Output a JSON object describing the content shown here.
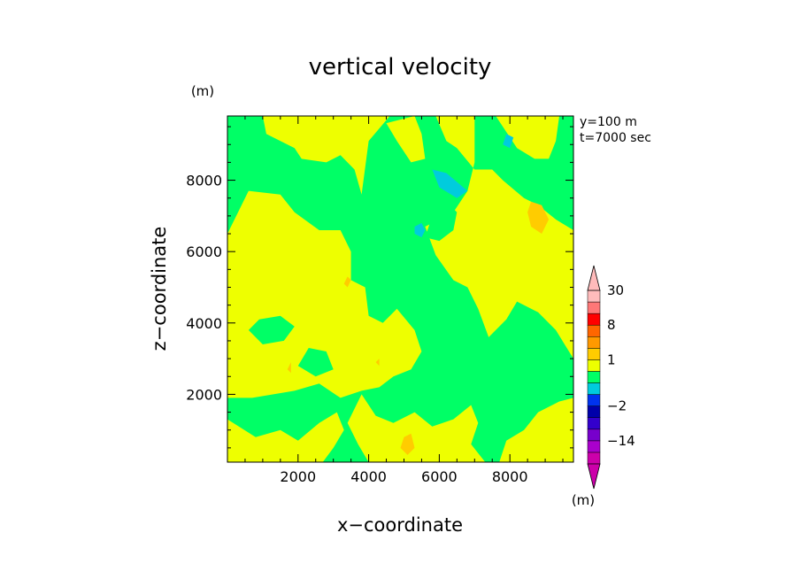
{
  "chart_data": {
    "type": "heatmap",
    "title": "vertical velocity",
    "xlabel": "x−coordinate",
    "ylabel": "z−coordinate",
    "y_unit": "(m)",
    "colorbar_unit": "(m)",
    "annotation_lines": [
      "y=100 m",
      "t=7000 sec"
    ],
    "xlim": [
      0,
      9800
    ],
    "ylim": [
      100,
      9800
    ],
    "x_ticks": [
      2000,
      4000,
      6000,
      8000
    ],
    "x_tick_labels": [
      "2000",
      "4000",
      "6000",
      "8000"
    ],
    "y_ticks": [
      2000,
      4000,
      6000,
      8000
    ],
    "y_tick_labels": [
      "2000",
      "4000",
      "6000",
      "8000"
    ],
    "colorbar": {
      "levels": [
        -30,
        -22,
        -14,
        -8,
        -4,
        -2,
        -1,
        -0.5,
        0.5,
        1,
        2,
        4,
        8,
        14,
        22,
        30
      ],
      "labeled_levels": [
        "30",
        "8",
        "1",
        "−2",
        "−14"
      ],
      "colors": [
        "#cc00aa",
        "#aa00cc",
        "#7700cc",
        "#3300cc",
        "#0000aa",
        "#0033ee",
        "#00ccdd",
        "#00ff66",
        "#eeff00",
        "#ffcc00",
        "#ff9900",
        "#ff6600",
        "#ff0000",
        "#ff7777",
        "#ffbbbb"
      ],
      "extend_both": true
    },
    "background_value_range": [
      -0.5,
      0.5
    ],
    "background_color": "#00ff66",
    "regions": [
      {
        "range": [
          0.5,
          1
        ],
        "color": "#eeff00",
        "polygon": [
          [
            0,
            6500
          ],
          [
            300,
            7100
          ],
          [
            600,
            7700
          ],
          [
            1500,
            7600
          ],
          [
            1900,
            7100
          ],
          [
            2600,
            6600
          ],
          [
            3200,
            6600
          ],
          [
            3500,
            6000
          ],
          [
            3500,
            5200
          ],
          [
            3900,
            5000
          ],
          [
            4000,
            4200
          ],
          [
            4400,
            4000
          ],
          [
            4800,
            4400
          ],
          [
            5300,
            3800
          ],
          [
            5500,
            3200
          ],
          [
            5200,
            2700
          ],
          [
            4700,
            2500
          ],
          [
            4300,
            2200
          ],
          [
            3800,
            2100
          ],
          [
            3200,
            1900
          ],
          [
            2600,
            2300
          ],
          [
            1900,
            2100
          ],
          [
            1300,
            2000
          ],
          [
            700,
            1900
          ],
          [
            0,
            1900
          ]
        ]
      },
      {
        "range": [
          0.5,
          1
        ],
        "color": "#eeff00",
        "polygon": [
          [
            0,
            1300
          ],
          [
            800,
            800
          ],
          [
            1500,
            1000
          ],
          [
            2000,
            700
          ],
          [
            2600,
            1200
          ],
          [
            3100,
            1500
          ],
          [
            3300,
            1000
          ],
          [
            3000,
            500
          ],
          [
            2700,
            100
          ],
          [
            0,
            100
          ]
        ]
      },
      {
        "range": [
          0.5,
          1
        ],
        "color": "#eeff00",
        "polygon": [
          [
            3800,
            2000
          ],
          [
            4200,
            1400
          ],
          [
            4700,
            1200
          ],
          [
            5300,
            1500
          ],
          [
            5800,
            1100
          ],
          [
            6400,
            1300
          ],
          [
            6900,
            1700
          ],
          [
            7100,
            1200
          ],
          [
            6900,
            600
          ],
          [
            7300,
            100
          ],
          [
            4000,
            100
          ],
          [
            3700,
            600
          ],
          [
            3400,
            1200
          ]
        ]
      },
      {
        "range": [
          0.5,
          1
        ],
        "color": "#eeff00",
        "polygon": [
          [
            7700,
            100
          ],
          [
            7900,
            700
          ],
          [
            8400,
            1000
          ],
          [
            8800,
            1500
          ],
          [
            9400,
            1800
          ],
          [
            9800,
            1900
          ],
          [
            9800,
            100
          ]
        ]
      },
      {
        "range": [
          0.5,
          1
        ],
        "color": "#eeff00",
        "polygon": [
          [
            1000,
            9800
          ],
          [
            1100,
            9300
          ],
          [
            1500,
            9100
          ],
          [
            1900,
            8900
          ],
          [
            2100,
            8600
          ],
          [
            2800,
            8500
          ],
          [
            3200,
            8700
          ],
          [
            3600,
            8300
          ],
          [
            3800,
            7600
          ],
          [
            4000,
            9100
          ],
          [
            4600,
            9800
          ]
        ]
      },
      {
        "range": [
          0.5,
          1
        ],
        "color": "#eeff00",
        "polygon": [
          [
            5900,
            9800
          ],
          [
            6200,
            9100
          ],
          [
            6500,
            8900
          ],
          [
            7000,
            8300
          ],
          [
            7500,
            8300
          ],
          [
            7800,
            8000
          ],
          [
            8400,
            7500
          ],
          [
            8800,
            7300
          ],
          [
            9300,
            6900
          ],
          [
            9800,
            6600
          ],
          [
            9800,
            3000
          ],
          [
            9300,
            3800
          ],
          [
            8800,
            4300
          ],
          [
            8200,
            4600
          ],
          [
            7900,
            4100
          ],
          [
            7400,
            3600
          ],
          [
            7100,
            4400
          ],
          [
            6800,
            5000
          ],
          [
            6400,
            5200
          ],
          [
            5900,
            5900
          ],
          [
            5600,
            6700
          ],
          [
            6400,
            7100
          ],
          [
            6800,
            7700
          ],
          [
            7000,
            8500
          ],
          [
            7000,
            9800
          ]
        ]
      },
      {
        "range": [
          0.5,
          1
        ],
        "color": "#eeff00",
        "polygon": [
          [
            7600,
            9800
          ],
          [
            8200,
            8900
          ],
          [
            8700,
            8600
          ],
          [
            9100,
            8600
          ],
          [
            9300,
            9100
          ],
          [
            9400,
            9800
          ]
        ]
      },
      {
        "range": [
          0.5,
          1
        ],
        "color": "#eeff00",
        "polygon": [
          [
            4500,
            9600
          ],
          [
            4800,
            9100
          ],
          [
            5200,
            8500
          ],
          [
            5600,
            8600
          ],
          [
            5500,
            9300
          ],
          [
            5300,
            9800
          ]
        ]
      },
      {
        "range": [
          -0.5,
          0.5
        ],
        "color": "#00ff66",
        "polygon": [
          [
            5600,
            6400
          ],
          [
            6000,
            6300
          ],
          [
            6400,
            6600
          ],
          [
            6500,
            7100
          ],
          [
            6200,
            7400
          ],
          [
            5800,
            7000
          ]
        ]
      },
      {
        "range": [
          -0.5,
          0.5
        ],
        "color": "#00ff66",
        "polygon": [
          [
            600,
            3800
          ],
          [
            1000,
            3400
          ],
          [
            1600,
            3500
          ],
          [
            1900,
            3900
          ],
          [
            1500,
            4200
          ],
          [
            900,
            4100
          ]
        ]
      },
      {
        "range": [
          -0.5,
          0.5
        ],
        "color": "#00ff66",
        "polygon": [
          [
            2000,
            2800
          ],
          [
            2500,
            2500
          ],
          [
            3000,
            2700
          ],
          [
            2800,
            3200
          ],
          [
            2300,
            3300
          ]
        ]
      },
      {
        "range": [
          -0.5,
          0.5
        ],
        "color": "#00ff66",
        "polygon": [
          [
            8400,
            3400
          ],
          [
            8900,
            2900
          ],
          [
            9400,
            3200
          ],
          [
            9200,
            3700
          ],
          [
            8700,
            3800
          ]
        ]
      },
      {
        "range": [
          -4,
          -2
        ],
        "color": "#00ccdd",
        "polygon": [
          [
            5800,
            8300
          ],
          [
            6200,
            8200
          ],
          [
            6800,
            7700
          ],
          [
            6500,
            7500
          ],
          [
            6000,
            7800
          ]
        ]
      },
      {
        "range": [
          -4,
          -2
        ],
        "color": "#00ccdd",
        "polygon": [
          [
            5300,
            6500
          ],
          [
            5500,
            6400
          ],
          [
            5600,
            6600
          ],
          [
            5500,
            6800
          ],
          [
            5300,
            6700
          ]
        ]
      },
      {
        "range": [
          -4,
          -2
        ],
        "color": "#00ccdd",
        "polygon": [
          [
            7800,
            9000
          ],
          [
            8000,
            8900
          ],
          [
            8100,
            9200
          ],
          [
            7900,
            9300
          ]
        ]
      },
      {
        "range": [
          1,
          2
        ],
        "color": "#ffcc00",
        "polygon": [
          [
            8600,
            7400
          ],
          [
            8900,
            7300
          ],
          [
            9100,
            6900
          ],
          [
            8900,
            6500
          ],
          [
            8600,
            6700
          ],
          [
            8500,
            7100
          ]
        ]
      },
      {
        "range": [
          1,
          2
        ],
        "color": "#ffcc00",
        "polygon": [
          [
            4900,
            500
          ],
          [
            5100,
            300
          ],
          [
            5300,
            500
          ],
          [
            5200,
            900
          ],
          [
            5000,
            800
          ]
        ]
      },
      {
        "range": [
          1,
          2
        ],
        "color": "#ffcc00",
        "polygon": [
          [
            3300,
            5100
          ],
          [
            3400,
            5000
          ],
          [
            3500,
            5200
          ],
          [
            3400,
            5300
          ]
        ]
      },
      {
        "range": [
          1,
          2
        ],
        "color": "#ffcc00",
        "polygon": [
          [
            4200,
            2900
          ],
          [
            4300,
            2800
          ],
          [
            4300,
            3000
          ]
        ]
      },
      {
        "range": [
          1,
          2
        ],
        "color": "#ffcc00",
        "polygon": [
          [
            1700,
            2700
          ],
          [
            1800,
            2600
          ],
          [
            1800,
            2900
          ]
        ]
      }
    ]
  },
  "colors": {
    "frame": "#000000",
    "text": "#000000"
  }
}
